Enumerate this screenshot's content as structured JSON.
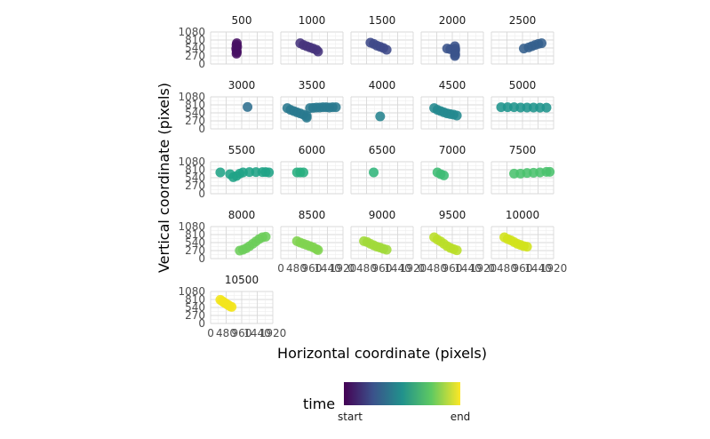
{
  "chart_data": {
    "type": "scatter",
    "layout": "facet_wrap",
    "xlabel": "Horizontal coordinate (pixels)",
    "ylabel": "Vertical coordinate (pixels)",
    "xlim": [
      0,
      1920
    ],
    "ylim": [
      0,
      1080
    ],
    "x_ticks": [
      "0",
      "480",
      "960",
      "1440",
      "1920"
    ],
    "y_ticks": [
      "0",
      "270",
      "540",
      "810",
      "1080"
    ],
    "grid": true,
    "legend": {
      "title": "time",
      "start_label": "start",
      "end_label": "end",
      "position": "bottom",
      "gradient": [
        "#440154",
        "#3b528b",
        "#21918c",
        "#5ec962",
        "#fde725"
      ]
    },
    "facets": [
      {
        "label": "500",
        "color": "#471063",
        "points": [
          [
            810,
            700
          ],
          [
            800,
            640
          ],
          [
            820,
            580
          ],
          [
            790,
            520
          ],
          [
            800,
            460
          ],
          [
            810,
            400
          ],
          [
            800,
            350
          ]
        ]
      },
      {
        "label": "1000",
        "color": "#45337c",
        "points": [
          [
            600,
            700
          ],
          [
            700,
            640
          ],
          [
            800,
            600
          ],
          [
            900,
            560
          ],
          [
            1000,
            520
          ],
          [
            1100,
            480
          ],
          [
            1150,
            420
          ]
        ]
      },
      {
        "label": "1500",
        "color": "#3e4989",
        "points": [
          [
            600,
            720
          ],
          [
            700,
            680
          ],
          [
            800,
            620
          ],
          [
            900,
            580
          ],
          [
            1000,
            540
          ],
          [
            1100,
            480
          ]
        ]
      },
      {
        "label": "2000",
        "color": "#3a538b",
        "points": [
          [
            800,
            520
          ],
          [
            900,
            500
          ],
          [
            1050,
            520
          ],
          [
            1040,
            600
          ],
          [
            1050,
            460
          ],
          [
            1040,
            400
          ],
          [
            1050,
            320
          ],
          [
            1040,
            270
          ]
        ]
      },
      {
        "label": "2500",
        "color": "#34608d",
        "points": [
          [
            1000,
            520
          ],
          [
            1150,
            560
          ],
          [
            1250,
            600
          ],
          [
            1350,
            640
          ],
          [
            1450,
            680
          ],
          [
            1550,
            700
          ]
        ]
      },
      {
        "label": "3000",
        "color": "#2e6e8e",
        "points": [
          [
            1140,
            740
          ]
        ]
      },
      {
        "label": "3500",
        "color": "#29798e",
        "points": [
          [
            200,
            700
          ],
          [
            300,
            640
          ],
          [
            400,
            600
          ],
          [
            500,
            560
          ],
          [
            600,
            520
          ],
          [
            700,
            480
          ],
          [
            800,
            440
          ],
          [
            800,
            380
          ],
          [
            900,
            700
          ],
          [
            1000,
            710
          ],
          [
            1100,
            720
          ],
          [
            1200,
            720
          ],
          [
            1300,
            730
          ],
          [
            1400,
            730
          ],
          [
            1500,
            720
          ],
          [
            1600,
            730
          ],
          [
            1700,
            730
          ]
        ]
      },
      {
        "label": "4000",
        "color": "#26838e",
        "points": [
          [
            900,
            420
          ]
        ]
      },
      {
        "label": "4500",
        "color": "#23898e",
        "points": [
          [
            400,
            700
          ],
          [
            500,
            640
          ],
          [
            600,
            600
          ],
          [
            700,
            560
          ],
          [
            800,
            520
          ],
          [
            900,
            500
          ],
          [
            1000,
            480
          ],
          [
            1100,
            450
          ]
        ]
      },
      {
        "label": "5000",
        "color": "#1f948c",
        "points": [
          [
            300,
            730
          ],
          [
            500,
            730
          ],
          [
            700,
            730
          ],
          [
            900,
            720
          ],
          [
            1100,
            720
          ],
          [
            1300,
            720
          ],
          [
            1500,
            715
          ],
          [
            1700,
            715
          ]
        ]
      },
      {
        "label": "5500",
        "color": "#20a386",
        "points": [
          [
            300,
            720
          ],
          [
            600,
            660
          ],
          [
            700,
            560
          ],
          [
            800,
            600
          ],
          [
            900,
            680
          ],
          [
            1000,
            720
          ],
          [
            1200,
            730
          ],
          [
            1400,
            730
          ],
          [
            1600,
            730
          ],
          [
            1700,
            730
          ],
          [
            1800,
            720
          ]
        ]
      },
      {
        "label": "6000",
        "color": "#28ae80",
        "points": [
          [
            500,
            720
          ],
          [
            600,
            720
          ],
          [
            700,
            720
          ]
        ]
      },
      {
        "label": "6500",
        "color": "#31b57b",
        "points": [
          [
            700,
            720
          ]
        ]
      },
      {
        "label": "7000",
        "color": "#3dbc74",
        "points": [
          [
            500,
            720
          ],
          [
            600,
            660
          ],
          [
            700,
            620
          ]
        ]
      },
      {
        "label": "7500",
        "color": "#4ac16d",
        "points": [
          [
            700,
            680
          ],
          [
            900,
            680
          ],
          [
            1100,
            700
          ],
          [
            1300,
            710
          ],
          [
            1500,
            720
          ],
          [
            1700,
            740
          ],
          [
            1800,
            740
          ]
        ]
      },
      {
        "label": "8000",
        "color": "#6ccd5a",
        "points": [
          [
            900,
            270
          ],
          [
            1000,
            300
          ],
          [
            1100,
            350
          ],
          [
            1200,
            420
          ],
          [
            1300,
            500
          ],
          [
            1400,
            580
          ],
          [
            1500,
            660
          ],
          [
            1600,
            720
          ],
          [
            1700,
            740
          ]
        ]
      },
      {
        "label": "8500",
        "color": "#7fd34e",
        "points": [
          [
            500,
            590
          ],
          [
            600,
            540
          ],
          [
            700,
            500
          ],
          [
            800,
            460
          ],
          [
            900,
            420
          ],
          [
            1000,
            380
          ],
          [
            1100,
            320
          ],
          [
            1150,
            290
          ]
        ]
      },
      {
        "label": "9000",
        "color": "#a0da39",
        "points": [
          [
            400,
            590
          ],
          [
            500,
            560
          ],
          [
            600,
            500
          ],
          [
            700,
            450
          ],
          [
            800,
            400
          ],
          [
            900,
            370
          ],
          [
            1000,
            330
          ],
          [
            1100,
            300
          ]
        ]
      },
      {
        "label": "9500",
        "color": "#bade28",
        "points": [
          [
            400,
            720
          ],
          [
            500,
            640
          ],
          [
            600,
            580
          ],
          [
            700,
            500
          ],
          [
            800,
            420
          ],
          [
            900,
            360
          ],
          [
            1000,
            320
          ],
          [
            1100,
            280
          ]
        ]
      },
      {
        "label": "10000",
        "color": "#d2e21b",
        "points": [
          [
            400,
            720
          ],
          [
            500,
            660
          ],
          [
            600,
            620
          ],
          [
            700,
            560
          ],
          [
            800,
            500
          ],
          [
            900,
            460
          ],
          [
            1000,
            420
          ],
          [
            1100,
            400
          ]
        ]
      },
      {
        "label": "10500",
        "color": "#f2e51d",
        "points": [
          [
            300,
            800
          ],
          [
            350,
            760
          ],
          [
            400,
            720
          ],
          [
            450,
            690
          ],
          [
            500,
            650
          ],
          [
            550,
            620
          ],
          [
            600,
            580
          ],
          [
            650,
            560
          ]
        ]
      }
    ]
  }
}
